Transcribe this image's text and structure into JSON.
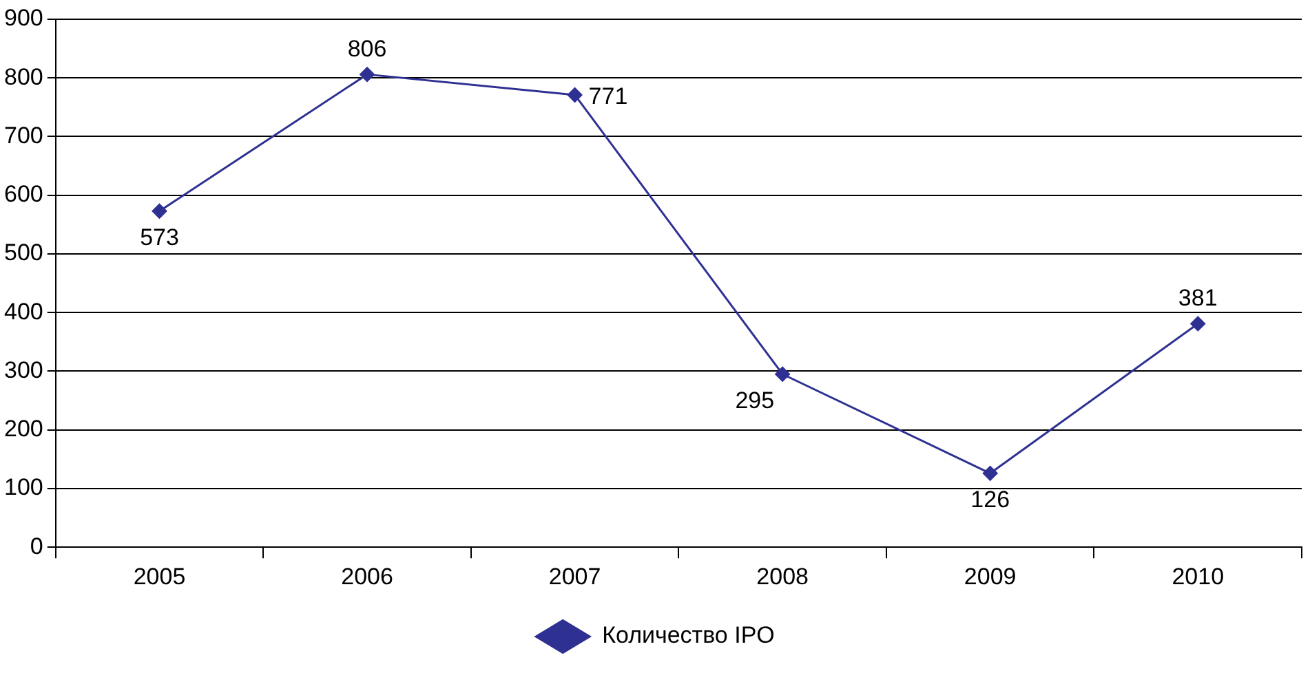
{
  "chart_data": {
    "type": "line",
    "categories": [
      "2005",
      "2006",
      "2007",
      "2008",
      "2009",
      "2010"
    ],
    "series": [
      {
        "name": "Количество IPO",
        "color": "#2e3192",
        "values": [
          573,
          806,
          771,
          295,
          126,
          381
        ]
      }
    ],
    "ylim": [
      0,
      900
    ],
    "yticks": [
      0,
      100,
      200,
      300,
      400,
      500,
      600,
      700,
      800,
      900
    ],
    "grid": "y",
    "legend": "bottom",
    "marker": "diamond",
    "data_labels": true
  }
}
